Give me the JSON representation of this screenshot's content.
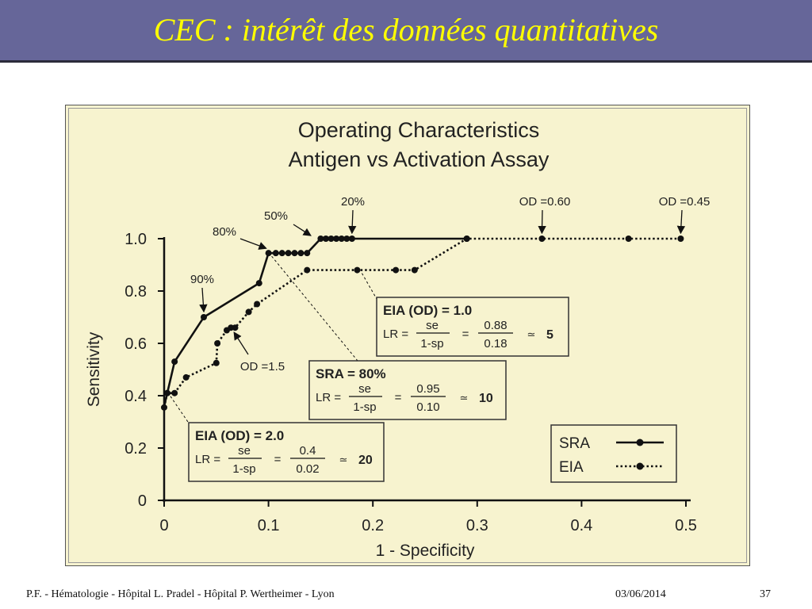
{
  "slide": {
    "title": "CEC : intérêt des données quantitatives",
    "footer_left": "P.F. - Hématologie - Hôpital L. Pradel - Hôpital P. Wertheimer - Lyon",
    "footer_date": "03/06/2014",
    "footer_page": "37"
  },
  "colors": {
    "title_bar": "#666699",
    "title_text": "#ffff00",
    "figure_bg": "#f7f3cf",
    "line": "#111111"
  },
  "chart_data": {
    "type": "line",
    "title_line1": "Operating Characteristics",
    "title_line2": "Antigen vs Activation Assay",
    "xlabel": "1 - Specificity",
    "ylabel": "Sensitivity",
    "xlim": [
      0,
      0.5
    ],
    "ylim": [
      0,
      1.0
    ],
    "xticks": [
      "0",
      "0.1",
      "0.2",
      "0.3",
      "0.4",
      "0.5"
    ],
    "xtick_values": [
      0,
      0.1,
      0.2,
      0.3,
      0.4,
      0.5
    ],
    "yticks": [
      "0",
      "0.2",
      "0.4",
      "0.6",
      "0.8",
      "1.0"
    ],
    "ytick_values": [
      0,
      0.2,
      0.4,
      0.6,
      0.8,
      1.0
    ],
    "grid": false,
    "legend_placement": "bottom-right",
    "series": [
      {
        "name": "SRA",
        "style": "solid",
        "x": [
          0,
          0.003,
          0.01,
          0.038,
          0.091,
          0.1,
          0.107,
          0.113,
          0.119,
          0.125,
          0.131,
          0.137,
          0.15,
          0.155,
          0.16,
          0.165,
          0.17,
          0.175,
          0.18,
          0.29
        ],
        "y": [
          0.36,
          0.41,
          0.53,
          0.7,
          0.83,
          0.945,
          0.945,
          0.945,
          0.945,
          0.945,
          0.945,
          0.945,
          1.0,
          1.0,
          1.0,
          1.0,
          1.0,
          1.0,
          1.0,
          1.0
        ],
        "markers": [
          false,
          true,
          true,
          true,
          true,
          true,
          true,
          true,
          true,
          true,
          true,
          true,
          true,
          true,
          true,
          true,
          true,
          true,
          true,
          true
        ]
      },
      {
        "name": "EIA",
        "style": "dotted",
        "x": [
          0,
          0.003,
          0.01,
          0.021,
          0.05,
          0.051,
          0.06,
          0.064,
          0.068,
          0.081,
          0.089,
          0.137,
          0.185,
          0.222,
          0.24,
          0.29,
          0.362,
          0.445,
          0.495
        ],
        "y": [
          0.355,
          0.41,
          0.41,
          0.47,
          0.525,
          0.6,
          0.65,
          0.66,
          0.66,
          0.72,
          0.75,
          0.88,
          0.88,
          0.88,
          0.88,
          1.0,
          1.0,
          1.0,
          1.0
        ],
        "markers": [
          true,
          true,
          true,
          true,
          true,
          true,
          true,
          true,
          true,
          true,
          true,
          true,
          true,
          true,
          true,
          true,
          true,
          true,
          true
        ]
      }
    ],
    "annotations": [
      {
        "text": "90%",
        "target": [
          0.038,
          0.7
        ]
      },
      {
        "text": "80%",
        "target": [
          0.1,
          0.945
        ]
      },
      {
        "text": "50%",
        "target": [
          0.145,
          1.0
        ]
      },
      {
        "text": "20%",
        "target": [
          0.18,
          1.0
        ]
      },
      {
        "text": "OD =0.60",
        "target": [
          0.362,
          1.0
        ]
      },
      {
        "text": "OD =0.45",
        "target": [
          0.495,
          1.0
        ]
      },
      {
        "text": "OD =1.5",
        "target": [
          0.064,
          0.66
        ]
      }
    ],
    "boxes": [
      {
        "heading": "EIA (OD) = 1.0",
        "lr": "LR =",
        "num": "se",
        "den": "1-sp",
        "eq": "=",
        "num_val": "0.88",
        "den_val": "0.18",
        "approx": "≃",
        "result": "5"
      },
      {
        "heading": "SRA = 80%",
        "lr": "LR =",
        "num": "se",
        "den": "1-sp",
        "eq": "=",
        "num_val": "0.95",
        "den_val": "0.10",
        "approx": "≃",
        "result": "10"
      },
      {
        "heading": "EIA (OD) = 2.0",
        "lr": "LR =",
        "num": "se",
        "den": "1-sp",
        "eq": "=",
        "num_val": "0.4",
        "den_val": "0.02",
        "approx": "≃",
        "result": "20"
      }
    ],
    "legend": [
      {
        "label": "SRA",
        "style": "solid"
      },
      {
        "label": "EIA",
        "style": "dotted"
      }
    ]
  }
}
